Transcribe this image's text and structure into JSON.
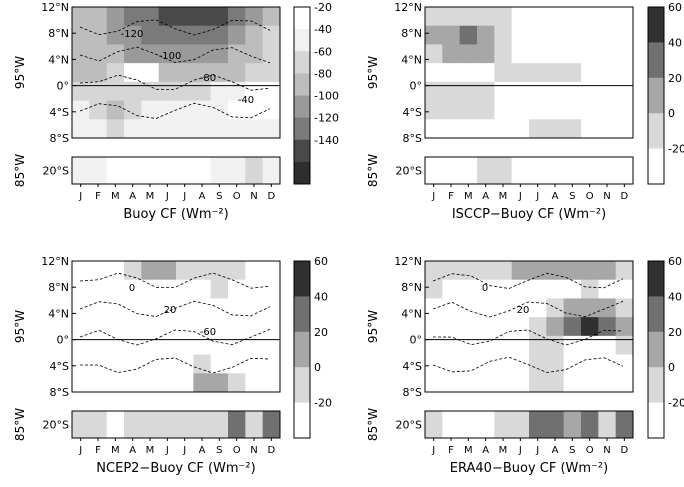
{
  "chart_data": [
    {
      "type": "heatmap",
      "title": "Buoy CF (Wm⁻²)",
      "lon_top": "95°W",
      "lon_bottom": "85°W",
      "months": [
        "J",
        "F",
        "M",
        "A",
        "M",
        "J",
        "J",
        "A",
        "S",
        "O",
        "N",
        "D"
      ],
      "lat_ticks": [
        "12°N",
        "8°N",
        "4°N",
        "0°",
        "4°S",
        "8°S"
      ],
      "bottom_lat": "20°S",
      "colorbar_ticks": [
        "-20",
        "-40",
        "-60",
        "-80",
        "-100",
        "-120",
        "-140"
      ],
      "contour_labels": [
        "-120",
        "-100",
        "-80",
        "-40"
      ],
      "grid": [
        [
          3,
          3,
          4,
          5,
          5,
          6,
          6,
          6,
          6,
          5,
          4,
          3
        ],
        [
          3,
          3,
          4,
          4,
          5,
          5,
          5,
          5,
          5,
          4,
          3,
          2
        ],
        [
          3,
          3,
          3,
          4,
          4,
          4,
          4,
          4,
          4,
          3,
          3,
          2
        ],
        [
          3,
          3,
          2,
          2,
          3,
          3,
          3,
          3,
          3,
          3,
          2,
          2
        ],
        [
          2,
          2,
          2,
          2,
          2,
          2,
          2,
          2,
          1,
          1,
          1,
          1
        ],
        [
          1,
          2,
          3,
          2,
          1,
          1,
          1,
          1,
          1,
          0,
          1,
          1
        ],
        [
          1,
          1,
          2,
          1,
          1,
          1,
          1,
          1,
          1,
          1,
          1,
          1
        ]
      ],
      "blank_cells": [
        [
          3,
          3
        ],
        [
          3,
          4
        ],
        [
          4,
          10
        ],
        [
          4,
          11
        ],
        [
          5,
          10
        ],
        [
          5,
          11
        ]
      ],
      "bottom_row": [
        1,
        1,
        0,
        0,
        0,
        0,
        0,
        0,
        1,
        1,
        2,
        1
      ]
    },
    {
      "type": "heatmap",
      "title": "ISCCP−Buoy CF (Wm⁻²)",
      "lon_top": "95°W",
      "lon_bottom": "85°W",
      "months": [
        "J",
        "F",
        "M",
        "A",
        "M",
        "J",
        "J",
        "A",
        "S",
        "O",
        "N",
        "D"
      ],
      "lat_ticks": [
        "12°N",
        "8°N",
        "4°N",
        "0°",
        "4°S",
        "8°S"
      ],
      "bottom_lat": "20°S",
      "colorbar_ticks": [
        "60",
        "40",
        "20",
        "0",
        "-20"
      ],
      "grid": [
        [
          1,
          1,
          1,
          1,
          1,
          0,
          0,
          0,
          0,
          0,
          0,
          0
        ],
        [
          2,
          2,
          3,
          2,
          1,
          0,
          0,
          0,
          0,
          0,
          0,
          0
        ],
        [
          1,
          2,
          2,
          2,
          1,
          0,
          0,
          0,
          0,
          0,
          0,
          0
        ],
        [
          0,
          0,
          0,
          0,
          1,
          1,
          1,
          1,
          1,
          0,
          0,
          0
        ],
        [
          1,
          1,
          1,
          1,
          0,
          0,
          0,
          0,
          0,
          0,
          0,
          0
        ],
        [
          1,
          1,
          1,
          1,
          0,
          0,
          0,
          0,
          0,
          0,
          0,
          0
        ],
        [
          0,
          0,
          0,
          0,
          0,
          0,
          1,
          1,
          1,
          0,
          0,
          0
        ]
      ],
      "blank_cells": [],
      "bottom_row": [
        0,
        0,
        0,
        1,
        1,
        0,
        0,
        0,
        0,
        0,
        0,
        0
      ]
    },
    {
      "type": "heatmap",
      "title": "NCEP2−Buoy CF (Wm⁻²)",
      "lon_top": "95°W",
      "lon_bottom": "85°W",
      "months": [
        "J",
        "F",
        "M",
        "A",
        "M",
        "J",
        "J",
        "A",
        "S",
        "O",
        "N",
        "D"
      ],
      "lat_ticks": [
        "12°N",
        "8°N",
        "4°N",
        "0°",
        "4°S",
        "8°S"
      ],
      "bottom_lat": "20°S",
      "colorbar_ticks": [
        "60",
        "40",
        "20",
        "0",
        "-20"
      ],
      "contour_labels": [
        "0",
        "20",
        "-60"
      ],
      "grid": [
        [
          0,
          0,
          0,
          1,
          2,
          2,
          1,
          1,
          1,
          1,
          0,
          0
        ],
        [
          0,
          0,
          0,
          0,
          0,
          0,
          0,
          0,
          1,
          0,
          0,
          0
        ],
        [
          0,
          0,
          0,
          0,
          0,
          0,
          0,
          0,
          0,
          0,
          0,
          0
        ],
        [
          0,
          0,
          0,
          0,
          0,
          0,
          0,
          0,
          0,
          0,
          0,
          0
        ],
        [
          0,
          0,
          0,
          0,
          0,
          0,
          0,
          0,
          0,
          0,
          0,
          0
        ],
        [
          0,
          0,
          0,
          0,
          0,
          0,
          0,
          1,
          1,
          1,
          0,
          0
        ],
        [
          0,
          0,
          0,
          0,
          0,
          0,
          0,
          2,
          2,
          1,
          0,
          0
        ]
      ],
      "blank_cells": [
        [
          5,
          8
        ],
        [
          5,
          9
        ]
      ],
      "bottom_row": [
        1,
        1,
        0,
        1,
        1,
        1,
        1,
        1,
        1,
        3,
        1,
        3
      ]
    },
    {
      "type": "heatmap",
      "title": "ERA40−Buoy CF (Wm⁻²)",
      "lon_top": "95°W",
      "lon_bottom": "85°W",
      "months": [
        "J",
        "F",
        "M",
        "A",
        "M",
        "J",
        "J",
        "A",
        "S",
        "O",
        "N",
        "D"
      ],
      "lat_ticks": [
        "12°N",
        "8°N",
        "4°N",
        "0°",
        "4°S",
        "8°S"
      ],
      "bottom_lat": "20°S",
      "colorbar_ticks": [
        "60",
        "40",
        "20",
        "0",
        "-20"
      ],
      "contour_labels": [
        "0",
        "20"
      ],
      "grid": [
        [
          1,
          1,
          1,
          1,
          1,
          2,
          2,
          2,
          2,
          2,
          2,
          1
        ],
        [
          1,
          0,
          0,
          0,
          0,
          0,
          0,
          0,
          0,
          1,
          0,
          0
        ],
        [
          0,
          0,
          0,
          0,
          0,
          0,
          0,
          1,
          2,
          2,
          2,
          1
        ],
        [
          0,
          0,
          0,
          0,
          0,
          0,
          1,
          2,
          3,
          4,
          3,
          2
        ],
        [
          0,
          0,
          0,
          0,
          0,
          0,
          1,
          1,
          2,
          2,
          1,
          1
        ],
        [
          0,
          0,
          0,
          0,
          0,
          0,
          1,
          1,
          0,
          0,
          0,
          0
        ],
        [
          0,
          0,
          0,
          0,
          0,
          0,
          1,
          1,
          0,
          0,
          0,
          0
        ]
      ],
      "blank_cells": [
        [
          4,
          8
        ],
        [
          4,
          9
        ],
        [
          4,
          10
        ],
        [
          5,
          8
        ],
        [
          5,
          9
        ],
        [
          5,
          10
        ],
        [
          6,
          8
        ],
        [
          6,
          9
        ],
        [
          6,
          10
        ]
      ],
      "bottom_row": [
        1,
        0,
        0,
        0,
        1,
        1,
        3,
        3,
        2,
        3,
        1,
        3
      ]
    }
  ]
}
